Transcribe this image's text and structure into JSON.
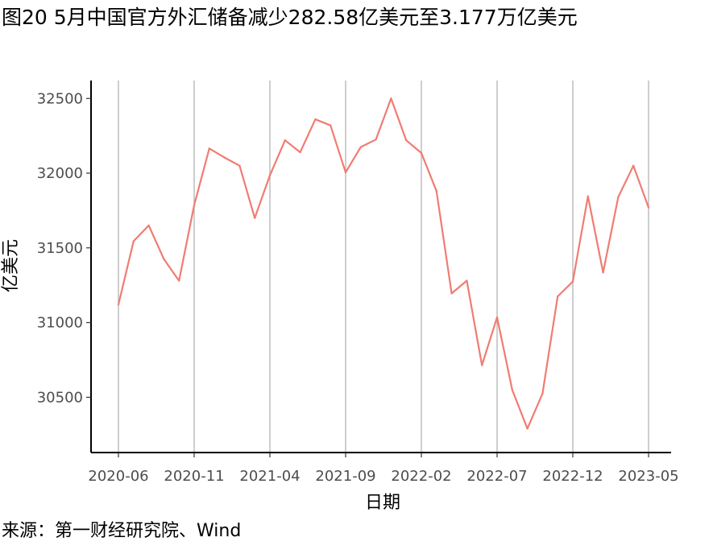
{
  "title": "图20 5月中国官方外汇储备减少282.58亿美元至3.177万亿美元",
  "source": "来源：第一财经研究院、Wind",
  "chart_data": {
    "type": "line",
    "xlabel": "日期",
    "ylabel": "亿美元",
    "ylim": [
      30130,
      32620
    ],
    "yticks": [
      30500,
      31000,
      31500,
      32000,
      32500
    ],
    "xtick_labels": [
      "2020-06",
      "2020-11",
      "2021-04",
      "2021-09",
      "2022-02",
      "2022-07",
      "2022-12",
      "2023-05"
    ],
    "grid": "vertical",
    "line_color": "#f07c72",
    "x": [
      "2020-06",
      "2020-07",
      "2020-08",
      "2020-09",
      "2020-10",
      "2020-11",
      "2020-12",
      "2021-01",
      "2021-02",
      "2021-03",
      "2021-04",
      "2021-05",
      "2021-06",
      "2021-07",
      "2021-08",
      "2021-09",
      "2021-10",
      "2021-11",
      "2021-12",
      "2022-01",
      "2022-02",
      "2022-03",
      "2022-04",
      "2022-05",
      "2022-06",
      "2022-07",
      "2022-08",
      "2022-09",
      "2022-10",
      "2022-11",
      "2022-12",
      "2023-01",
      "2023-02",
      "2023-03",
      "2023-04",
      "2023-05"
    ],
    "series": [
      {
        "values": [
          31120,
          31545,
          31650,
          31425,
          31280,
          31785,
          32165,
          32105,
          32050,
          31700,
          31985,
          32220,
          32140,
          32360,
          32320,
          32005,
          32175,
          32225,
          32500,
          32220,
          32135,
          31880,
          31195,
          31280,
          30715,
          31035,
          30550,
          30290,
          30525,
          31175,
          31275,
          31845,
          31335,
          31840,
          32050,
          31770
        ]
      }
    ]
  }
}
